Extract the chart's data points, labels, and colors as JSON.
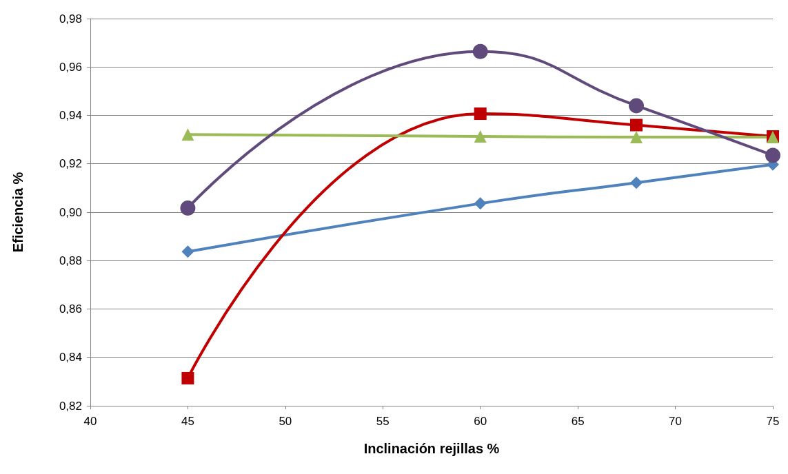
{
  "chart_data": {
    "type": "line",
    "xlabel": "Inclinación rejillas %",
    "ylabel": "Eficiencia %",
    "xlim": [
      40,
      75
    ],
    "xticks": [
      40,
      45,
      50,
      55,
      60,
      65,
      70,
      75
    ],
    "ylim": [
      0.82,
      0.98
    ],
    "yticks": [
      {
        "value": 0.82,
        "label": "0,82"
      },
      {
        "value": 0.84,
        "label": "0,84"
      },
      {
        "value": 0.86,
        "label": "0,86"
      },
      {
        "value": 0.88,
        "label": "0,88"
      },
      {
        "value": 0.9,
        "label": "0,90"
      },
      {
        "value": 0.92,
        "label": "0,92"
      },
      {
        "value": 0.94,
        "label": "0,94"
      },
      {
        "value": 0.96,
        "label": "0,96"
      },
      {
        "value": 0.98,
        "label": "0,98"
      }
    ],
    "grid": "y",
    "line_style": "solid",
    "x": [
      45,
      60,
      68,
      75
    ],
    "series": [
      {
        "color": "#4f81bd",
        "marker": "diamond",
        "values": [
          0.8837,
          0.9036,
          0.9122,
          0.9197
        ]
      },
      {
        "color": "#c00000",
        "marker": "square",
        "values": [
          0.8314,
          0.9407,
          0.936,
          0.9313
        ]
      },
      {
        "color": "#9bbb59",
        "marker": "triangle",
        "values": [
          0.9321,
          0.9313,
          0.931,
          0.931
        ]
      },
      {
        "color": "#604a7b",
        "marker": "circle",
        "values": [
          0.9017,
          0.9664,
          0.944,
          0.9235
        ]
      }
    ]
  }
}
